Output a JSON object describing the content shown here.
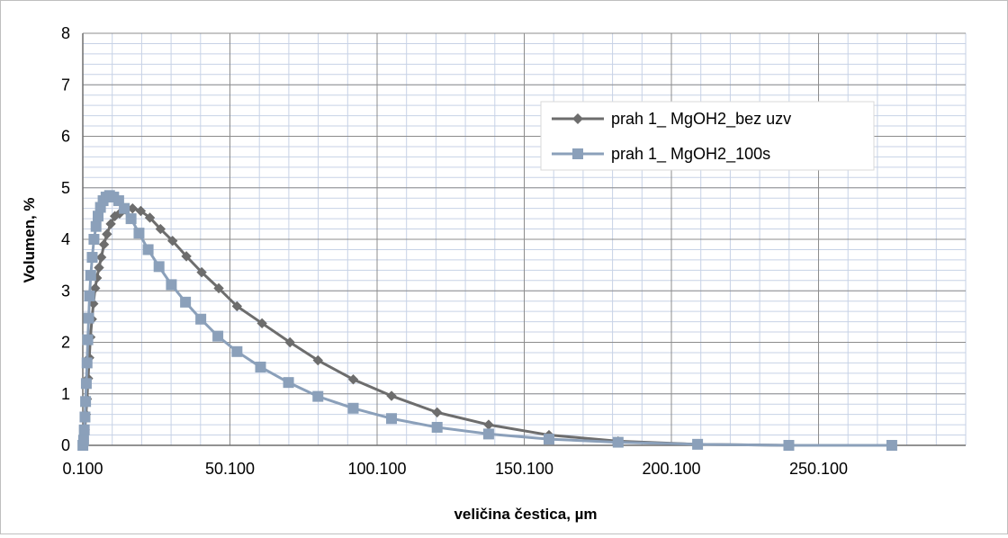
{
  "chart_data": {
    "type": "line",
    "title": "",
    "xlabel": "veličina čestica, µm",
    "ylabel": "Volumen, %",
    "xlim": [
      0.1,
      300.1
    ],
    "ylim": [
      0,
      8
    ],
    "x_ticks": [
      0.1,
      50.1,
      100.1,
      150.1,
      200.1,
      250.1
    ],
    "x_tick_labels": [
      "0.100",
      "50.100",
      "100.100",
      "150.100",
      "200.100",
      "250.100"
    ],
    "y_ticks": [
      0,
      1,
      2,
      3,
      4,
      5,
      6,
      7,
      8
    ],
    "y_tick_labels": [
      "0",
      "1",
      "2",
      "3",
      "4",
      "5",
      "6",
      "7",
      "8"
    ],
    "grid": true,
    "legend_position": "right",
    "series": [
      {
        "name": "prah 1_ MgOH2_bez uzv",
        "color": "#6d6d6d",
        "marker": "diamond",
        "x": [
          0.13,
          0.47,
          0.78,
          1.16,
          1.52,
          1.9,
          2.3,
          2.7,
          3.2,
          3.7,
          4.3,
          4.9,
          5.6,
          6.4,
          7.3,
          8.3,
          9.6,
          11.0,
          12.6,
          14.5,
          17.0,
          19.8,
          22.9,
          26.5,
          30.6,
          35.3,
          40.5,
          46.3,
          52.5,
          61.0,
          70.5,
          80.0,
          92.0,
          105.0,
          120.5,
          138.0,
          158.5,
          182.0,
          209.0,
          240.0,
          275.0
        ],
        "y": [
          0.0,
          0.1,
          0.3,
          0.6,
          0.9,
          1.3,
          1.7,
          2.1,
          2.45,
          2.75,
          3.05,
          3.25,
          3.45,
          3.65,
          3.9,
          4.1,
          4.3,
          4.45,
          4.5,
          4.58,
          4.6,
          4.55,
          4.42,
          4.2,
          3.97,
          3.67,
          3.36,
          3.05,
          2.7,
          2.37,
          2.0,
          1.65,
          1.28,
          0.96,
          0.64,
          0.4,
          0.2,
          0.08,
          0.02,
          0.0,
          0.0
        ]
      },
      {
        "name": "prah 1_ MgOH2_100s",
        "color": "#8ba0ba",
        "marker": "square",
        "x": [
          0.13,
          0.37,
          0.6,
          0.85,
          1.05,
          1.3,
          1.55,
          1.8,
          2.1,
          2.4,
          2.8,
          3.3,
          3.9,
          4.6,
          5.3,
          6.1,
          7.0,
          8.0,
          9.2,
          10.6,
          12.3,
          14.2,
          16.5,
          19.2,
          22.3,
          26.0,
          30.2,
          35.0,
          40.2,
          46.0,
          52.5,
          60.5,
          70.0,
          80.0,
          92.0,
          105.0,
          120.5,
          138.0,
          158.5,
          182.0,
          209.0,
          240.0,
          275.0
        ],
        "y": [
          0.0,
          0.1,
          0.3,
          0.55,
          0.85,
          1.2,
          1.6,
          2.05,
          2.47,
          2.9,
          3.3,
          3.65,
          4.0,
          4.25,
          4.45,
          4.62,
          4.75,
          4.82,
          4.85,
          4.82,
          4.75,
          4.6,
          4.4,
          4.12,
          3.8,
          3.47,
          3.12,
          2.78,
          2.45,
          2.12,
          1.82,
          1.52,
          1.22,
          0.95,
          0.72,
          0.52,
          0.35,
          0.22,
          0.12,
          0.06,
          0.02,
          0.0,
          0.0
        ]
      }
    ]
  }
}
